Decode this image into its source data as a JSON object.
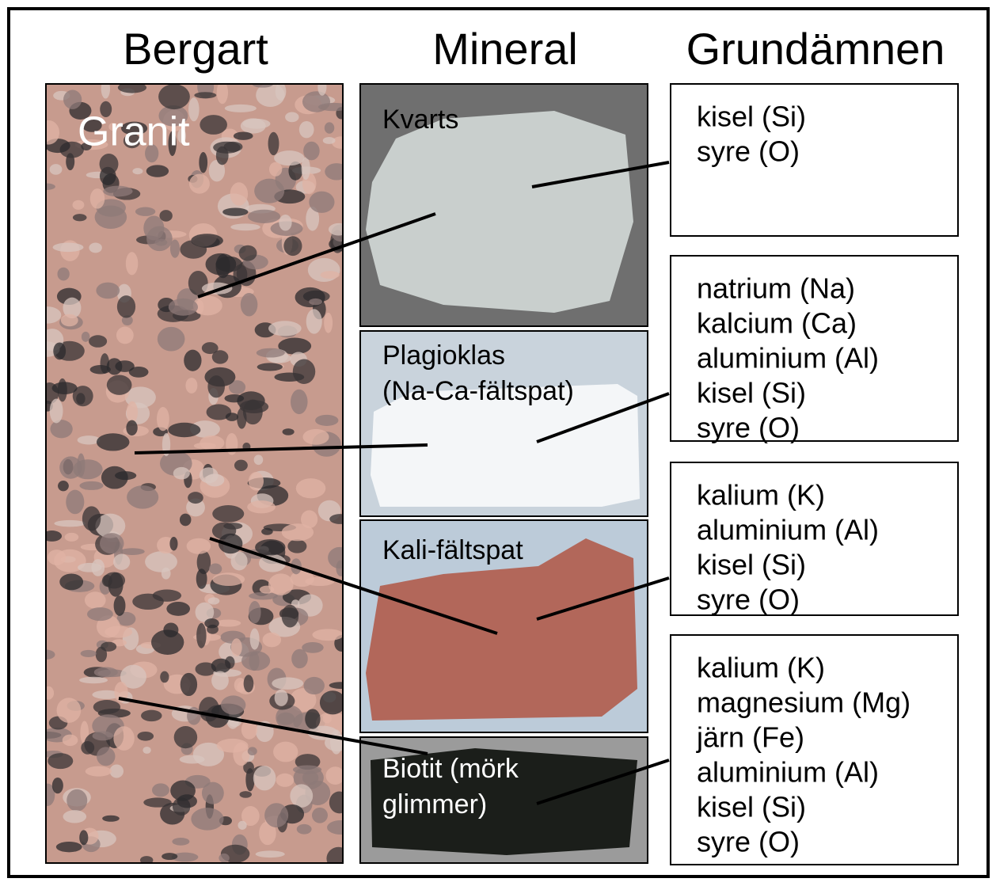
{
  "columns": [
    "Bergart",
    "Mineral",
    "Grundämnen"
  ],
  "rock": {
    "label": "Granit"
  },
  "minerals": [
    {
      "label": [
        "Kvarts"
      ],
      "elements": [
        "kisel (Si)",
        "syre (O)"
      ]
    },
    {
      "label": [
        "Plagioklas",
        "(Na-Ca-fältspat)"
      ],
      "elements": [
        "natrium (Na)",
        "kalcium (Ca)",
        "aluminium (Al)",
        "kisel (Si)",
        "syre (O)"
      ]
    },
    {
      "label": [
        "Kali-fältspat"
      ],
      "elements": [
        "kalium (K)",
        "aluminium (Al)",
        "kisel (Si)",
        "syre (O)"
      ]
    },
    {
      "label": [
        "Biotit (mörk",
        "glimmer)"
      ],
      "elements": [
        "kalium (K)",
        "magnesium (Mg)",
        "järn (Fe)",
        "aluminium (Al)",
        "kisel (Si)",
        "syre (O)"
      ]
    }
  ]
}
